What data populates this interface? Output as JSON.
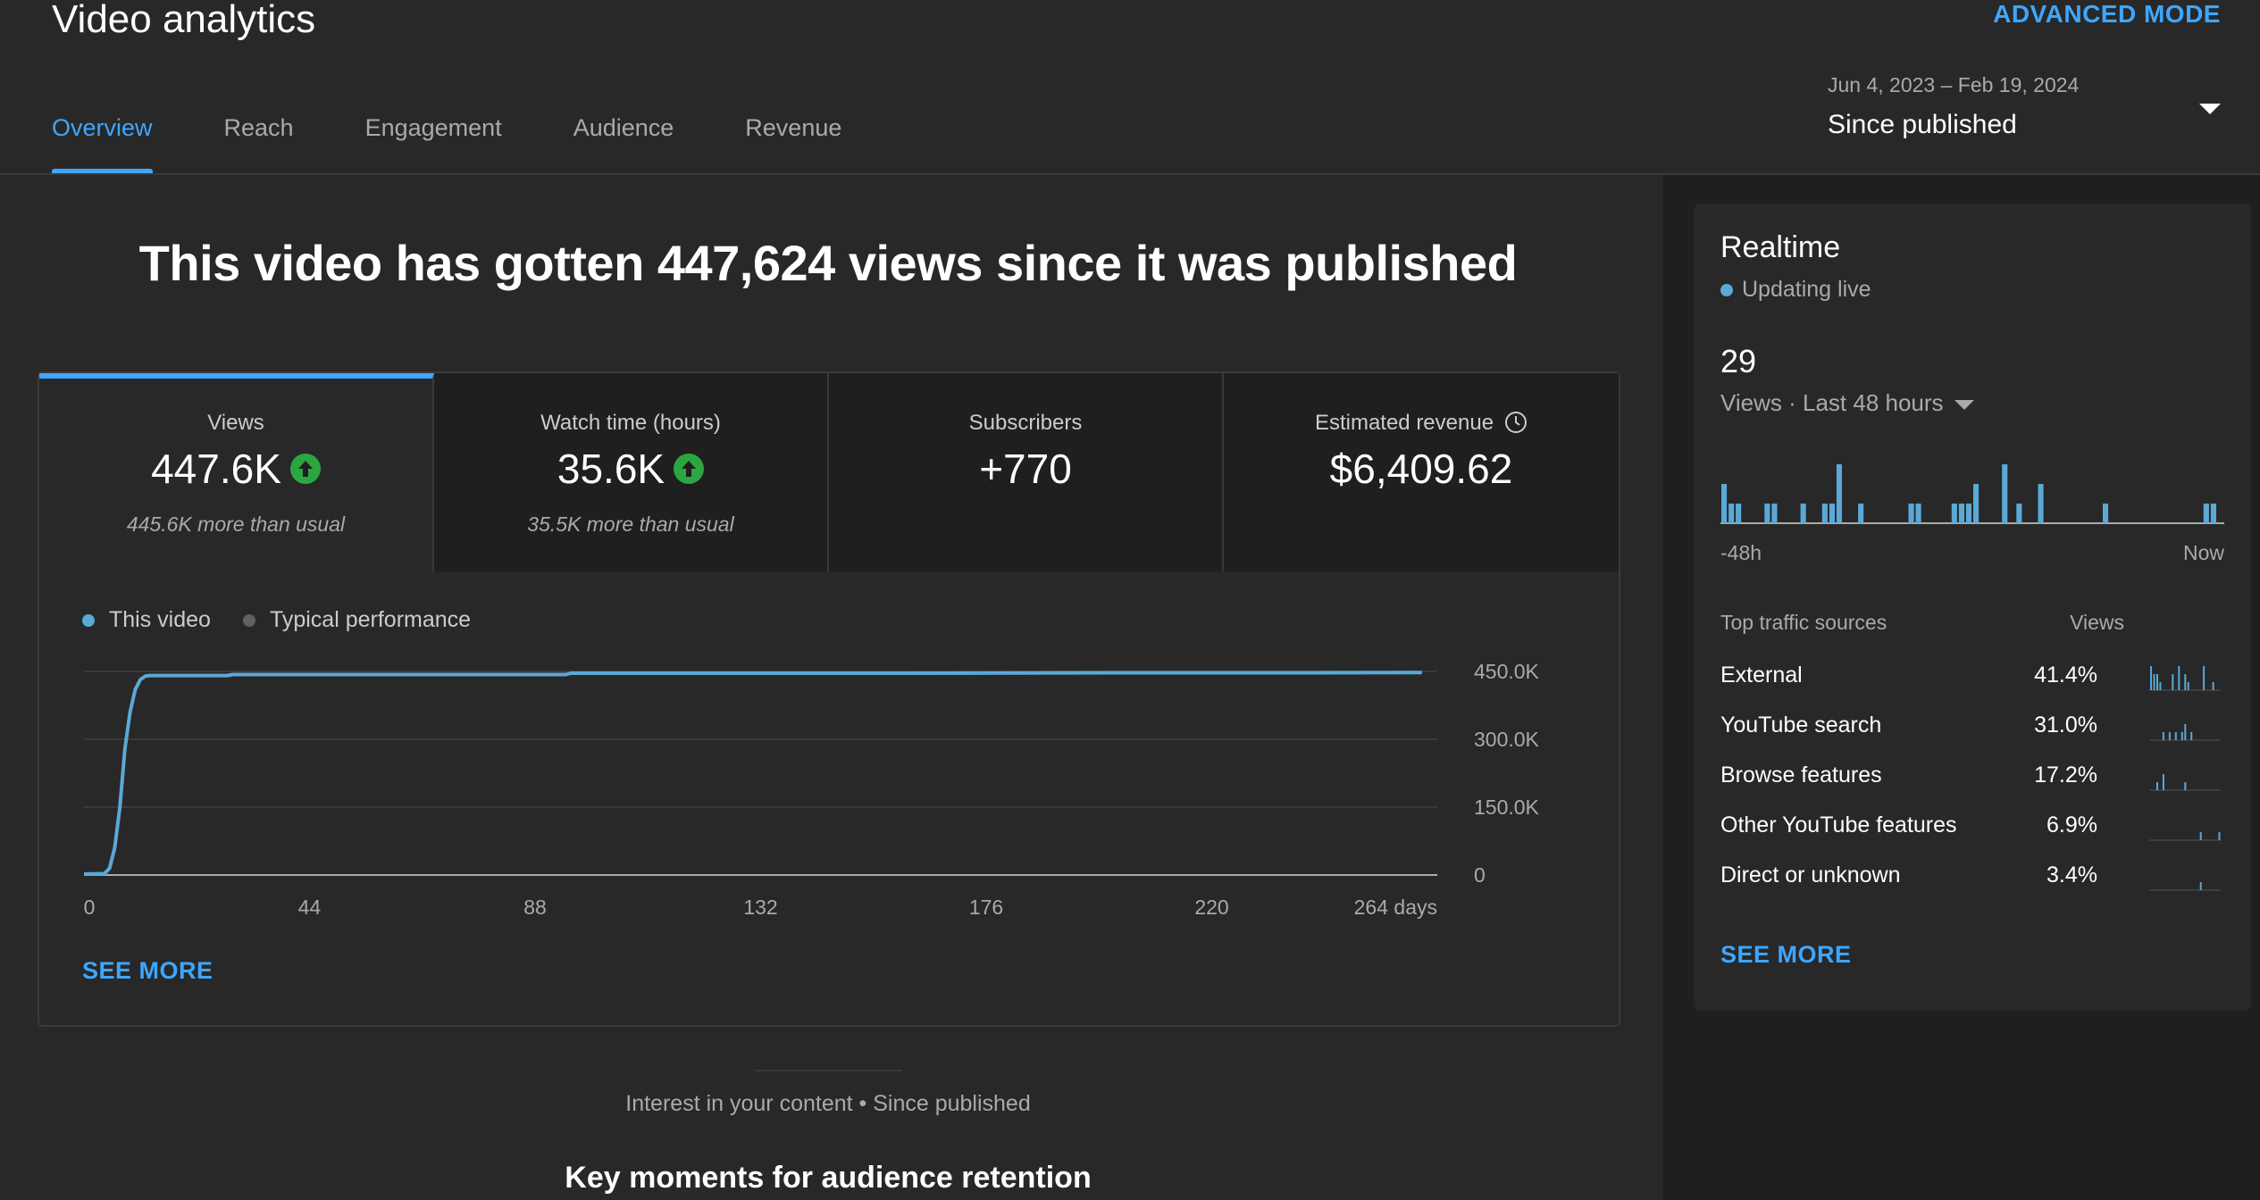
{
  "header": {
    "title": "Video analytics",
    "advanced_mode": "ADVANCED MODE",
    "tabs": [
      {
        "label": "Overview",
        "active": true
      },
      {
        "label": "Reach",
        "active": false
      },
      {
        "label": "Engagement",
        "active": false
      },
      {
        "label": "Audience",
        "active": false
      },
      {
        "label": "Revenue",
        "active": false
      }
    ],
    "date_range": "Jun 4, 2023 – Feb 19, 2024",
    "date_selection": "Since published"
  },
  "headline": "This video has gotten 447,624 views since it was published",
  "metrics": [
    {
      "label": "Views",
      "value": "447.6K",
      "note": "445.6K more than usual",
      "trend": "up",
      "active": true
    },
    {
      "label": "Watch time (hours)",
      "value": "35.6K",
      "note": "35.5K more than usual",
      "trend": "up",
      "active": false
    },
    {
      "label": "Subscribers",
      "value": "+770",
      "note": "",
      "trend": "",
      "active": false
    },
    {
      "label": "Estimated revenue",
      "value": "$6,409.62",
      "note": "",
      "trend": "",
      "active": false,
      "icon": "clock-icon"
    }
  ],
  "legend": {
    "this_video": "This video",
    "typical": "Typical performance"
  },
  "colors": {
    "accent": "#3ea6ff",
    "series": "#5aa9d6",
    "typical": "#606060",
    "up": "#2ba640"
  },
  "chart_data": {
    "type": "line",
    "x_unit": "days",
    "x_ticks": [
      0,
      44,
      88,
      132,
      176,
      220,
      264
    ],
    "x_tick_labels": [
      "0",
      "44",
      "88",
      "132",
      "176",
      "220",
      "264 days"
    ],
    "y_ticks": [
      0,
      150000,
      300000,
      450000
    ],
    "y_tick_labels": [
      "0",
      "150.0K",
      "300.0K",
      "450.0K"
    ],
    "ylim": [
      0,
      450000
    ],
    "xlim": [
      0,
      264
    ],
    "grid": true,
    "legend_position": "top-left",
    "series": [
      {
        "name": "This video",
        "x": [
          0,
          4,
          5,
          6,
          7,
          8,
          9,
          10,
          11,
          12,
          13,
          28,
          29,
          60,
          94,
          95,
          120,
          160,
          200,
          240,
          261
        ],
        "values": [
          2000,
          3000,
          15000,
          60000,
          150000,
          280000,
          360000,
          410000,
          432000,
          440000,
          441000,
          441000,
          443000,
          443000,
          443000,
          446000,
          446000,
          446000,
          447000,
          447000,
          447624
        ]
      }
    ]
  },
  "see_more": "SEE MORE",
  "interest_text": "Interest in your content • Since published",
  "key_moments": "Key moments for audience retention",
  "realtime": {
    "title": "Realtime",
    "live": "Updating live",
    "count": "29",
    "range_label": "Views · Last 48 hours",
    "axis_start": "-48h",
    "axis_end": "Now",
    "bars": [
      2,
      1,
      1,
      0,
      0,
      0,
      1,
      1,
      0,
      0,
      0,
      1,
      0,
      0,
      1,
      1,
      3,
      0,
      0,
      1,
      0,
      0,
      0,
      0,
      0,
      0,
      1,
      1,
      0,
      0,
      0,
      0,
      1,
      1,
      1,
      2,
      0,
      0,
      0,
      3,
      0,
      1,
      0,
      0,
      2,
      0,
      0,
      0,
      0,
      0,
      0,
      0,
      0,
      1,
      0,
      0,
      0,
      0,
      0,
      0,
      0,
      0,
      0,
      0,
      0,
      0,
      0,
      1,
      1,
      0
    ],
    "traffic_header_source": "Top traffic sources",
    "traffic_header_views": "Views",
    "traffic_sources": [
      {
        "name": "External",
        "pct": "41.4%",
        "spark": [
          3,
          2,
          2,
          1,
          0,
          0,
          0,
          2,
          0,
          3,
          0,
          2,
          1,
          0,
          0,
          0,
          0,
          3,
          0,
          0,
          1,
          0,
          0
        ]
      },
      {
        "name": "YouTube search",
        "pct": "31.0%",
        "spark": [
          0,
          0,
          0,
          0,
          1,
          0,
          1,
          0,
          1,
          0,
          1,
          2,
          0,
          1,
          0,
          0,
          0,
          0,
          0,
          0,
          0,
          0,
          0
        ]
      },
      {
        "name": "Browse features",
        "pct": "17.2%",
        "spark": [
          0,
          0,
          1,
          0,
          2,
          0,
          0,
          0,
          0,
          0,
          0,
          1,
          0,
          0,
          0,
          0,
          0,
          0,
          0,
          0,
          0,
          0,
          0
        ]
      },
      {
        "name": "Other YouTube features",
        "pct": "6.9%",
        "spark": [
          0,
          0,
          0,
          0,
          0,
          0,
          0,
          0,
          0,
          0,
          0,
          0,
          0,
          0,
          0,
          0,
          1,
          0,
          0,
          0,
          0,
          0,
          1
        ]
      },
      {
        "name": "Direct or unknown",
        "pct": "3.4%",
        "spark": [
          0,
          0,
          0,
          0,
          0,
          0,
          0,
          0,
          0,
          0,
          0,
          0,
          0,
          0,
          0,
          0,
          1,
          0,
          0,
          0,
          0,
          0,
          0
        ]
      }
    ],
    "see_more": "SEE MORE"
  }
}
